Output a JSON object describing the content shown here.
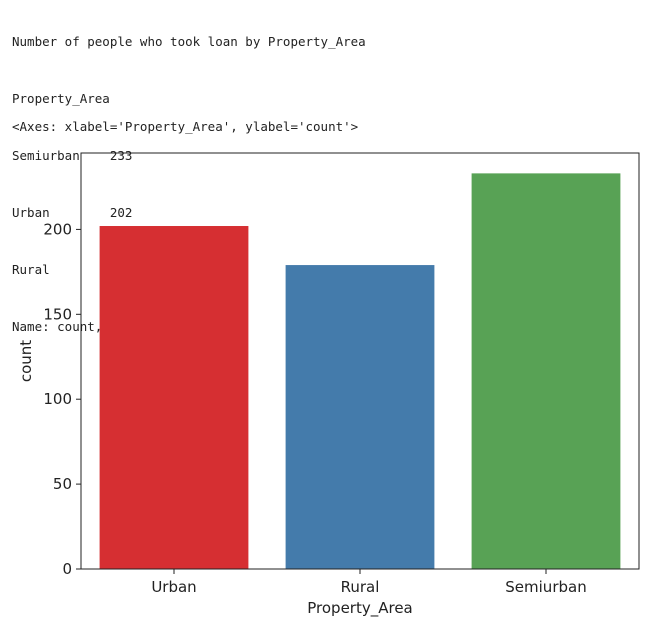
{
  "console": {
    "lines": [
      "Number of people who took loan by Property_Area",
      "Property_Area",
      "Semiurban    233",
      "Urban        202",
      "Rural        179",
      "Name: count, dtype: int64"
    ],
    "repr": "<Axes: xlabel='Property_Area', ylabel='count'>"
  },
  "chart_data": {
    "type": "bar",
    "categories": [
      "Urban",
      "Rural",
      "Semiurban"
    ],
    "values": [
      202,
      179,
      233
    ],
    "colors": [
      "#d62f32",
      "#447bab",
      "#58a255"
    ],
    "title": "",
    "xlabel": "Property_Area",
    "ylabel": "count",
    "ylim": [
      0,
      245
    ],
    "yticks": [
      0,
      50,
      100,
      150,
      200
    ],
    "grid": false,
    "legend": "none"
  }
}
